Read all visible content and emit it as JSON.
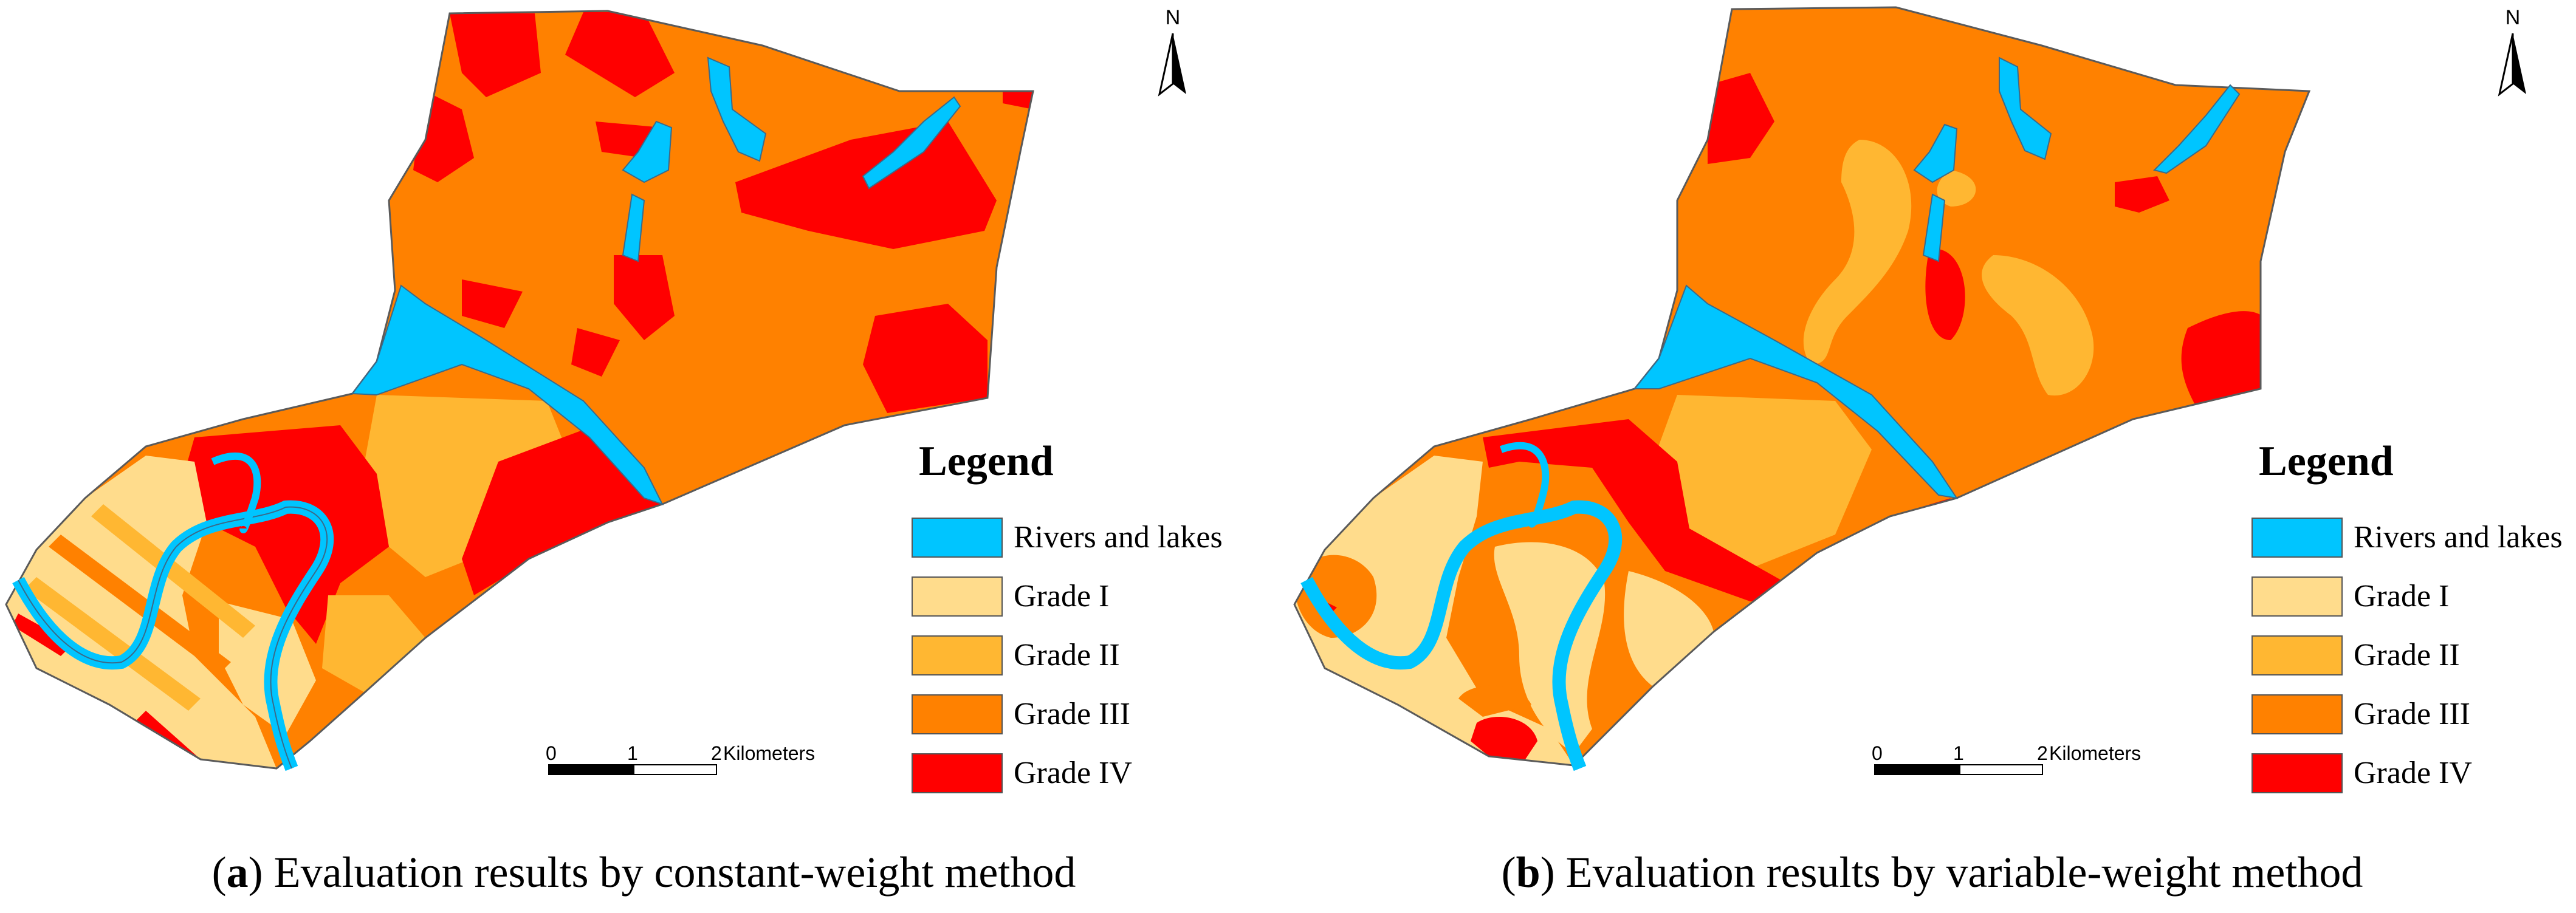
{
  "colors": {
    "rivers": "#00c5ff",
    "grade_i": "#ffdc8c",
    "grade_ii": "#ffb732",
    "grade_iii": "#ff8100",
    "grade_iv": "#ff0000",
    "outline": "#5a5a5a"
  },
  "panels": [
    {
      "caption_letter": "a",
      "caption_text": "Evaluation results by constant-weight method",
      "north_label": "N",
      "legend": {
        "title": "Legend",
        "items": [
          {
            "label": "Rivers and lakes",
            "color": "#00c5ff"
          },
          {
            "label": "Grade I",
            "color": "#ffdc8c"
          },
          {
            "label": "Grade II",
            "color": "#ffb732"
          },
          {
            "label": "Grade III",
            "color": "#ff8100"
          },
          {
            "label": "Grade IV",
            "color": "#ff0000"
          }
        ]
      },
      "scale": {
        "ticks": [
          "0",
          "1",
          "2"
        ],
        "unit": "Kilometers"
      }
    },
    {
      "caption_letter": "b",
      "caption_text": "Evaluation results by variable-weight method",
      "north_label": "N",
      "legend": {
        "title": "Legend",
        "items": [
          {
            "label": "Rivers and lakes",
            "color": "#00c5ff"
          },
          {
            "label": "Grade I",
            "color": "#ffdc8c"
          },
          {
            "label": "Grade II",
            "color": "#ffb732"
          },
          {
            "label": "Grade III",
            "color": "#ff8100"
          },
          {
            "label": "Grade IV",
            "color": "#ff0000"
          }
        ]
      },
      "scale": {
        "ticks": [
          "0",
          "1",
          "2"
        ],
        "unit": "Kilometers"
      }
    }
  ]
}
